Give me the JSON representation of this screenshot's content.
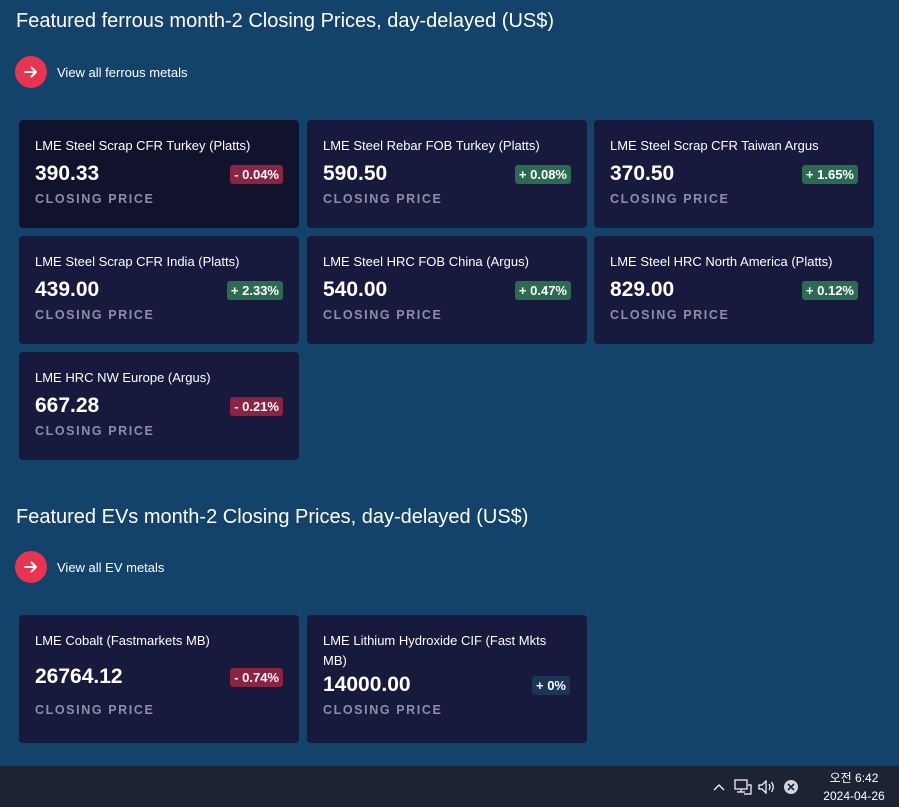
{
  "ferrous": {
    "title": "Featured ferrous month-2 Closing Prices, day-delayed (US$)",
    "view_all": "View all ferrous metals",
    "cards": [
      {
        "name": "LME Steel Scrap CFR Turkey (Platts)",
        "price": "390.33",
        "change": "- 0.04%",
        "label": "CLOSING PRICE"
      },
      {
        "name": "LME Steel Rebar FOB Turkey (Platts)",
        "price": "590.50",
        "change": "+ 0.08%",
        "label": "CLOSING PRICE"
      },
      {
        "name": "LME Steel Scrap CFR Taiwan Argus",
        "price": "370.50",
        "change": "+ 1.65%",
        "label": "CLOSING PRICE"
      },
      {
        "name": "LME Steel Scrap CFR India (Platts)",
        "price": "439.00",
        "change": "+ 2.33%",
        "label": "CLOSING PRICE"
      },
      {
        "name": "LME Steel HRC FOB China (Argus)",
        "price": "540.00",
        "change": "+ 0.47%",
        "label": "CLOSING PRICE"
      },
      {
        "name": "LME Steel HRC North America (Platts)",
        "price": "829.00",
        "change": "+ 0.12%",
        "label": "CLOSING PRICE"
      },
      {
        "name": "LME HRC NW Europe (Argus)",
        "price": "667.28",
        "change": "- 0.21%",
        "label": "CLOSING PRICE"
      }
    ]
  },
  "evs": {
    "title": "Featured EVs month-2 Closing Prices, day-delayed (US$)",
    "view_all": "View all EV metals",
    "cards": [
      {
        "name": "LME Cobalt (Fastmarkets MB)",
        "price": "26764.12",
        "change": "- 0.74%",
        "label": "CLOSING PRICE"
      },
      {
        "name": "LME Lithium Hydroxide CIF (Fast Mkts MB)",
        "price": "14000.00",
        "change": "+ 0%",
        "label": "CLOSING PRICE"
      }
    ]
  },
  "colors": {
    "background": "#13426a",
    "card": "#171a3c",
    "accent": "#e8344f",
    "negative": "#8c2342",
    "positive": "#2a6b52"
  },
  "taskbar": {
    "time": "오전 6:42",
    "date": "2024-04-26",
    "icons": [
      "chevron-up-icon",
      "network-icon",
      "speaker-icon",
      "close-circle-icon"
    ]
  }
}
